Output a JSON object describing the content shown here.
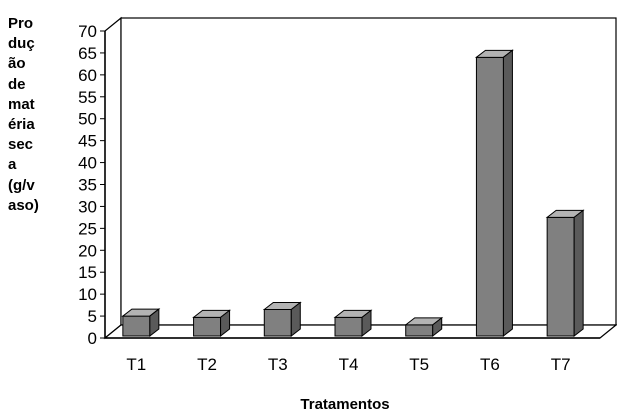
{
  "chart_data": {
    "type": "bar",
    "title": "",
    "xlabel": "Tratamentos",
    "ylabel": "Produção de matéria seca (g/vaso)",
    "ylabel_lines": [
      "Pro",
      "duç",
      "ão",
      "de",
      "mat",
      "éria",
      "sec",
      "a",
      "(g/v",
      "aso)"
    ],
    "categories": [
      "T1",
      "T2",
      "T3",
      "T4",
      "T5",
      "T6",
      "T7"
    ],
    "values": [
      5,
      4.7,
      6.5,
      4.7,
      3,
      64,
      27.5
    ],
    "ylim": [
      0,
      70
    ],
    "yticks": [
      0,
      5,
      10,
      15,
      20,
      25,
      30,
      35,
      40,
      45,
      50,
      55,
      60,
      65,
      70
    ],
    "grid": true,
    "legend": "none",
    "style": "3d-column",
    "colors": {
      "bar_front": "#808080",
      "bar_top": "#b3b3b3",
      "bar_side": "#5a5a5a",
      "grid": "#000000",
      "axis": "#000000"
    }
  }
}
